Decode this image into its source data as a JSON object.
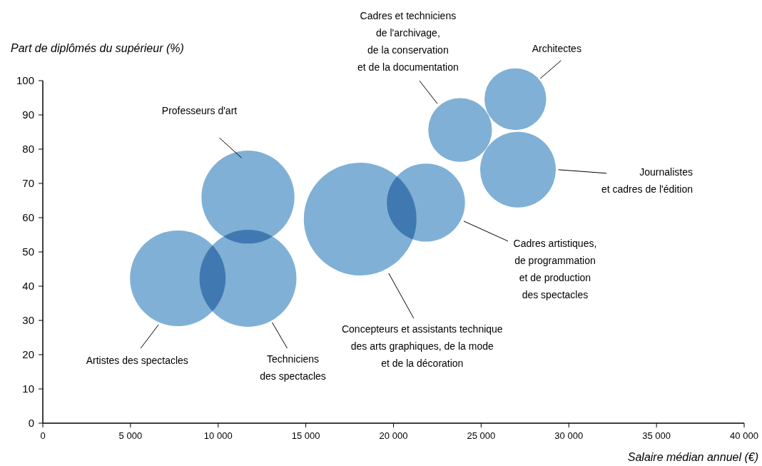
{
  "chart_data": {
    "type": "bubble",
    "xlabel": "Salaire médian annuel (€)",
    "ylabel": "Part de diplômés du supérieur (%)",
    "x": [
      7700,
      11700,
      11700,
      18100,
      21850,
      23800,
      26950,
      27100
    ],
    "values": [
      42.3,
      42.3,
      66,
      59.6,
      64.4,
      85.6,
      94.6,
      74
    ],
    "sizes": [
      0.72,
      0.74,
      0.68,
      1,
      0.48,
      0.32,
      0.3,
      0.45
    ],
    "color": "#80b0d5",
    "xlim": [
      0,
      40000
    ],
    "ylim": [
      0,
      100
    ],
    "xticks": [
      0,
      {
        "value": 5000,
        "label": "5 000"
      },
      {
        "value": 10000,
        "label": "10 000"
      },
      {
        "value": 15000,
        "label": "15 000"
      },
      {
        "value": 20000,
        "label": "20 000"
      },
      {
        "value": 25000,
        "label": "25 000"
      },
      {
        "value": 30000,
        "label": "30 000"
      },
      {
        "value": 35000,
        "label": "35 000"
      },
      {
        "value": 40000,
        "label": "40 000"
      }
    ],
    "yticks": [
      0,
      10,
      20,
      30,
      40,
      50,
      60,
      70,
      80,
      90,
      100
    ],
    "grid": false,
    "annotations": [
      "Artistes des spectacles",
      "Techniciens\ndes spectacles",
      "Professeurs d'art",
      "Concepteurs et assistants technique\ndes arts graphiques, de la mode\net de la décoration",
      "Cadres artistiques,\nde programmation\net de production\ndes spectacles",
      "Cadres et techniciens\nde l'archivage,\nde la conservation\net de la documentation",
      "Architectes",
      {
        "text": "Journalistes\net cadres de l'édition",
        "x": 29400,
        "y": 74
      }
    ]
  }
}
